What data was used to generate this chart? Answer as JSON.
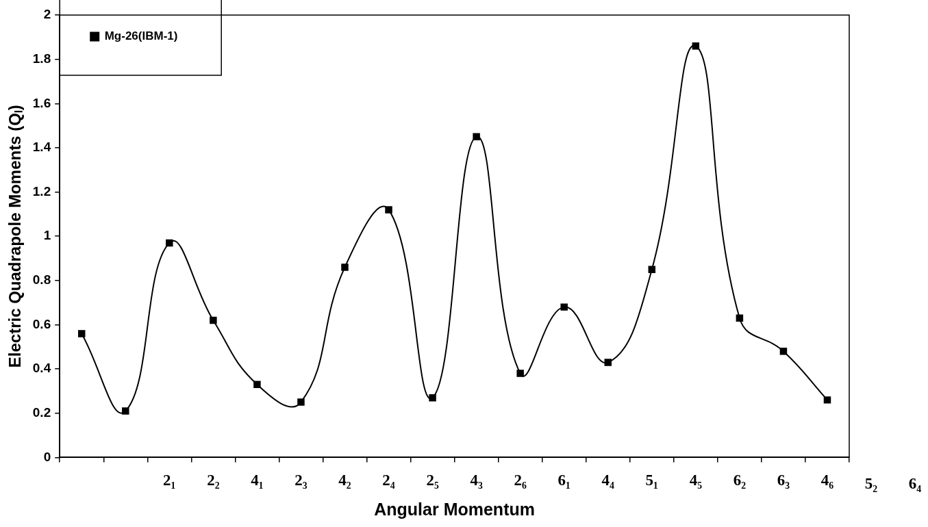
{
  "chart_data": {
    "type": "line",
    "xlabel": "Angular Momentum",
    "ylabel": "Electric Quadrapole Moments (Qₗ)",
    "categories": [
      null,
      null,
      "2₁",
      "2₂",
      "4₁",
      "2₃",
      "4₂",
      "2₄",
      "2₅",
      "4₃",
      "2₆",
      "6₁",
      "4₄",
      "5₁",
      "4₅",
      "6₂",
      "6₃",
      "4₆"
    ],
    "series": [
      {
        "name": "Mg-26(IBM-1)",
        "color": "#000000",
        "values": [
          0.56,
          0.21,
          0.97,
          0.62,
          0.33,
          0.25,
          0.86,
          1.12,
          0.27,
          1.45,
          0.38,
          0.68,
          0.43,
          0.85,
          1.86,
          0.63,
          0.48,
          0.26
        ]
      }
    ],
    "annotations": [
      "5₂",
      "6₄"
    ],
    "ylim": [
      0,
      2
    ],
    "yticks": [
      0,
      0.2,
      0.4,
      0.6,
      0.8,
      1,
      1.2,
      1.4,
      1.6,
      1.8,
      2
    ],
    "grid": false,
    "legend": "top left",
    "marker": "square",
    "line_style": "solid"
  }
}
